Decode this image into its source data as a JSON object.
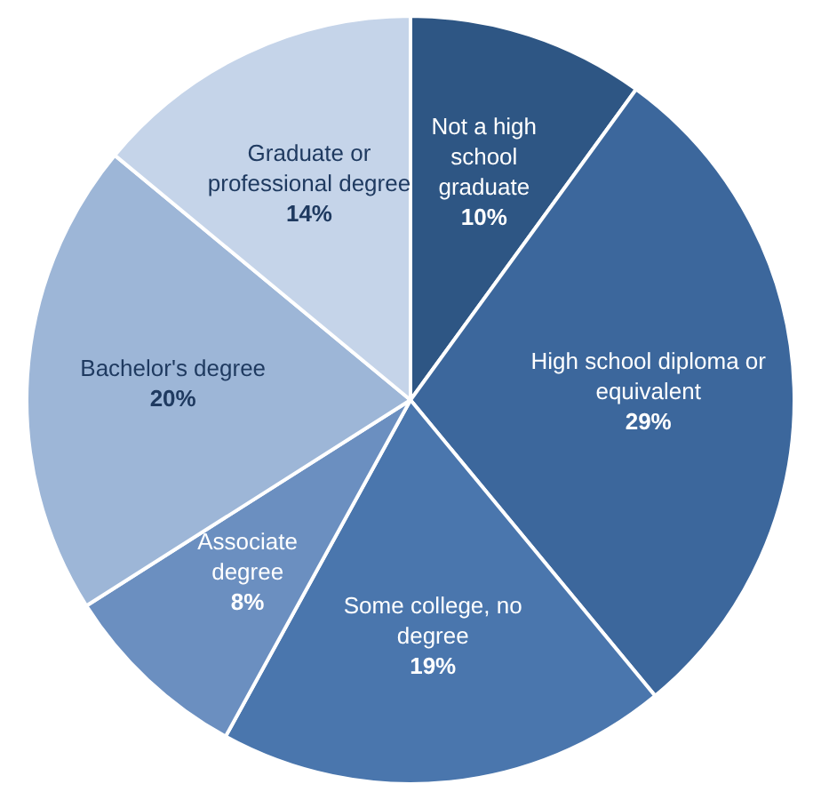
{
  "chart_data": {
    "type": "pie",
    "categories": [
      "Not a high school graduate",
      "High school diploma or equivalent",
      "Some college, no degree",
      "Associate degree",
      "Bachelor's degree",
      "Graduate or professional degree"
    ],
    "values": [
      10,
      29,
      19,
      8,
      20,
      14
    ],
    "value_labels": [
      "10%",
      "29%",
      "19%",
      "8%",
      "20%",
      "14%"
    ],
    "colors": [
      "#2e5684",
      "#3c679c",
      "#4a76ad",
      "#6b8fc0",
      "#9db6d7",
      "#c5d4e9"
    ],
    "legend": false
  }
}
